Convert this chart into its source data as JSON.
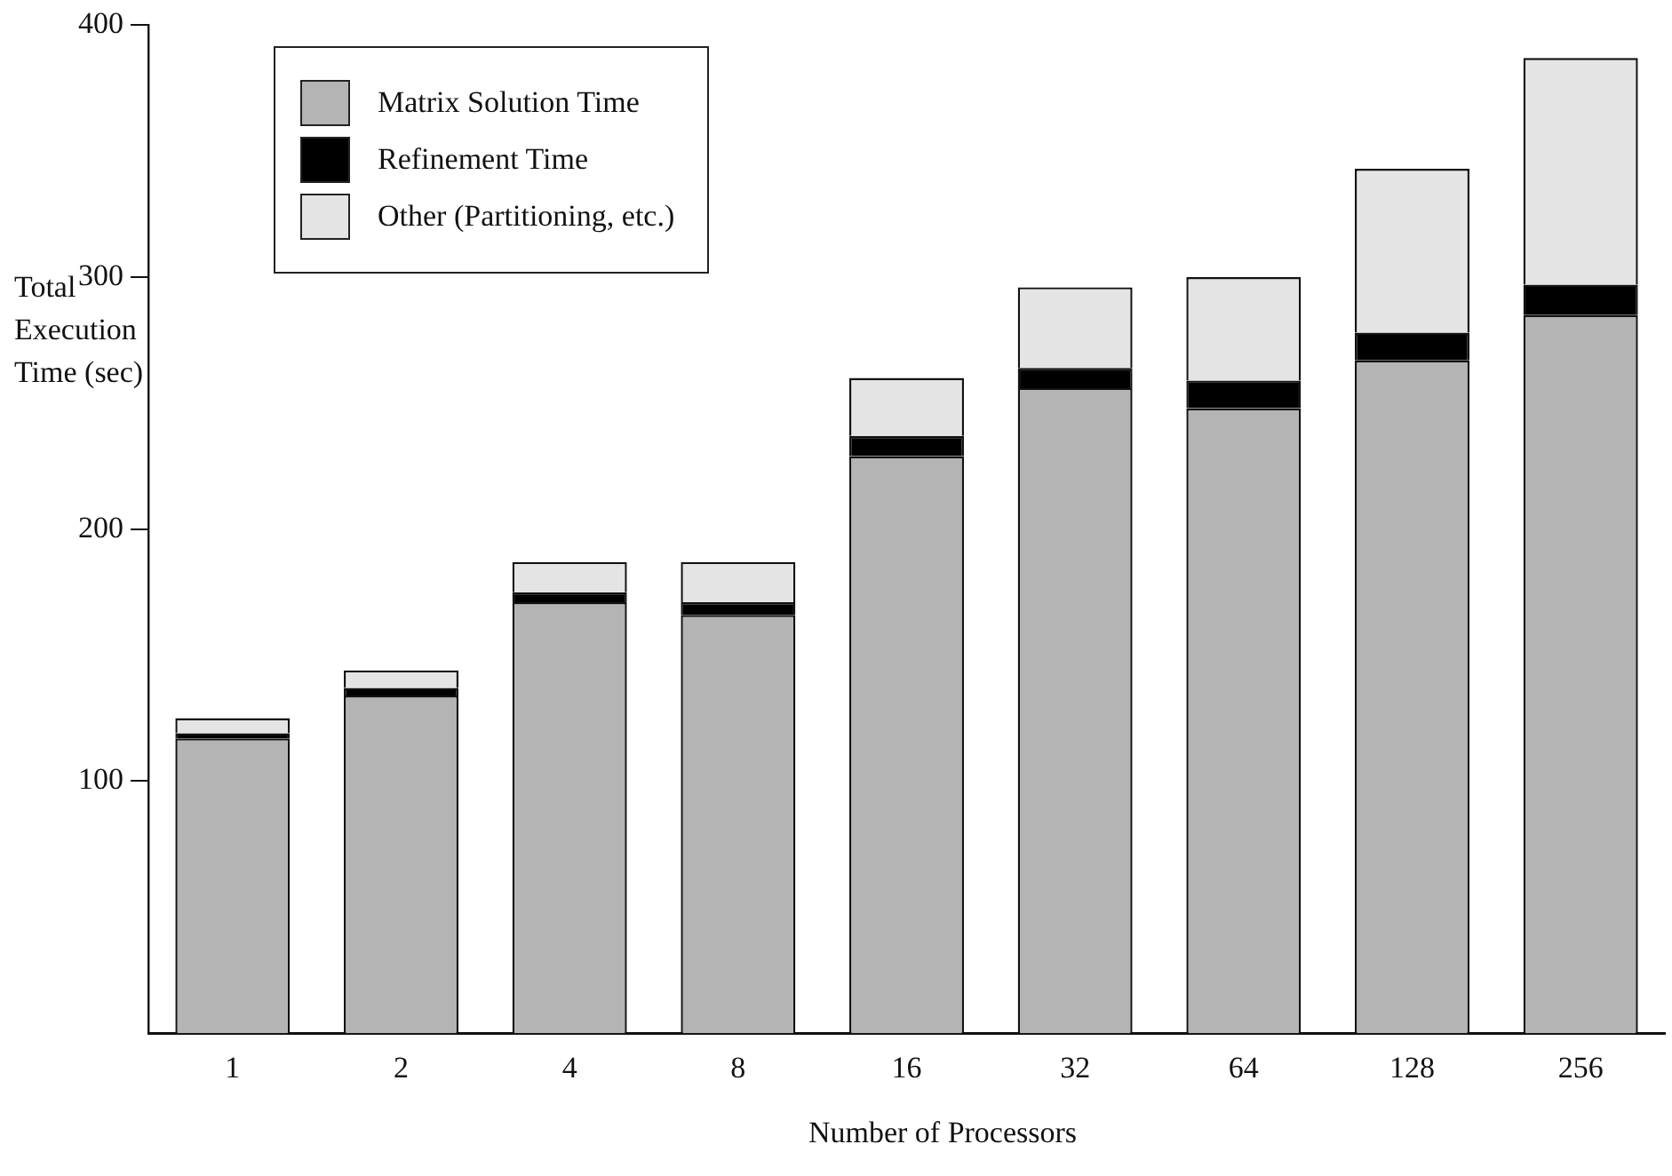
{
  "chart_data": {
    "type": "bar",
    "stacked": true,
    "xlabel": "Number of Processors",
    "ylabel": "Total Execution Time (sec)",
    "categories": [
      "1",
      "2",
      "4",
      "8",
      "16",
      "32",
      "64",
      "128",
      "256"
    ],
    "series": [
      {
        "name": "Matrix Solution Time",
        "color": "#b4b4b4",
        "values": [
          117,
          134,
          171,
          166,
          229,
          256,
          248,
          267,
          285
        ]
      },
      {
        "name": "Refinement Time",
        "color": "#000000",
        "values": [
          2,
          3,
          4,
          5,
          8,
          8,
          11,
          11,
          12
        ]
      },
      {
        "name": "Other (Partitioning, etc.)",
        "color": "#e4e4e4",
        "values": [
          6,
          7,
          12,
          16,
          23,
          32,
          41,
          65,
          90
        ]
      }
    ],
    "ylim": [
      0,
      400
    ],
    "yticks": [
      100,
      200,
      300,
      400
    ],
    "grid": false,
    "legend": "top left"
  }
}
